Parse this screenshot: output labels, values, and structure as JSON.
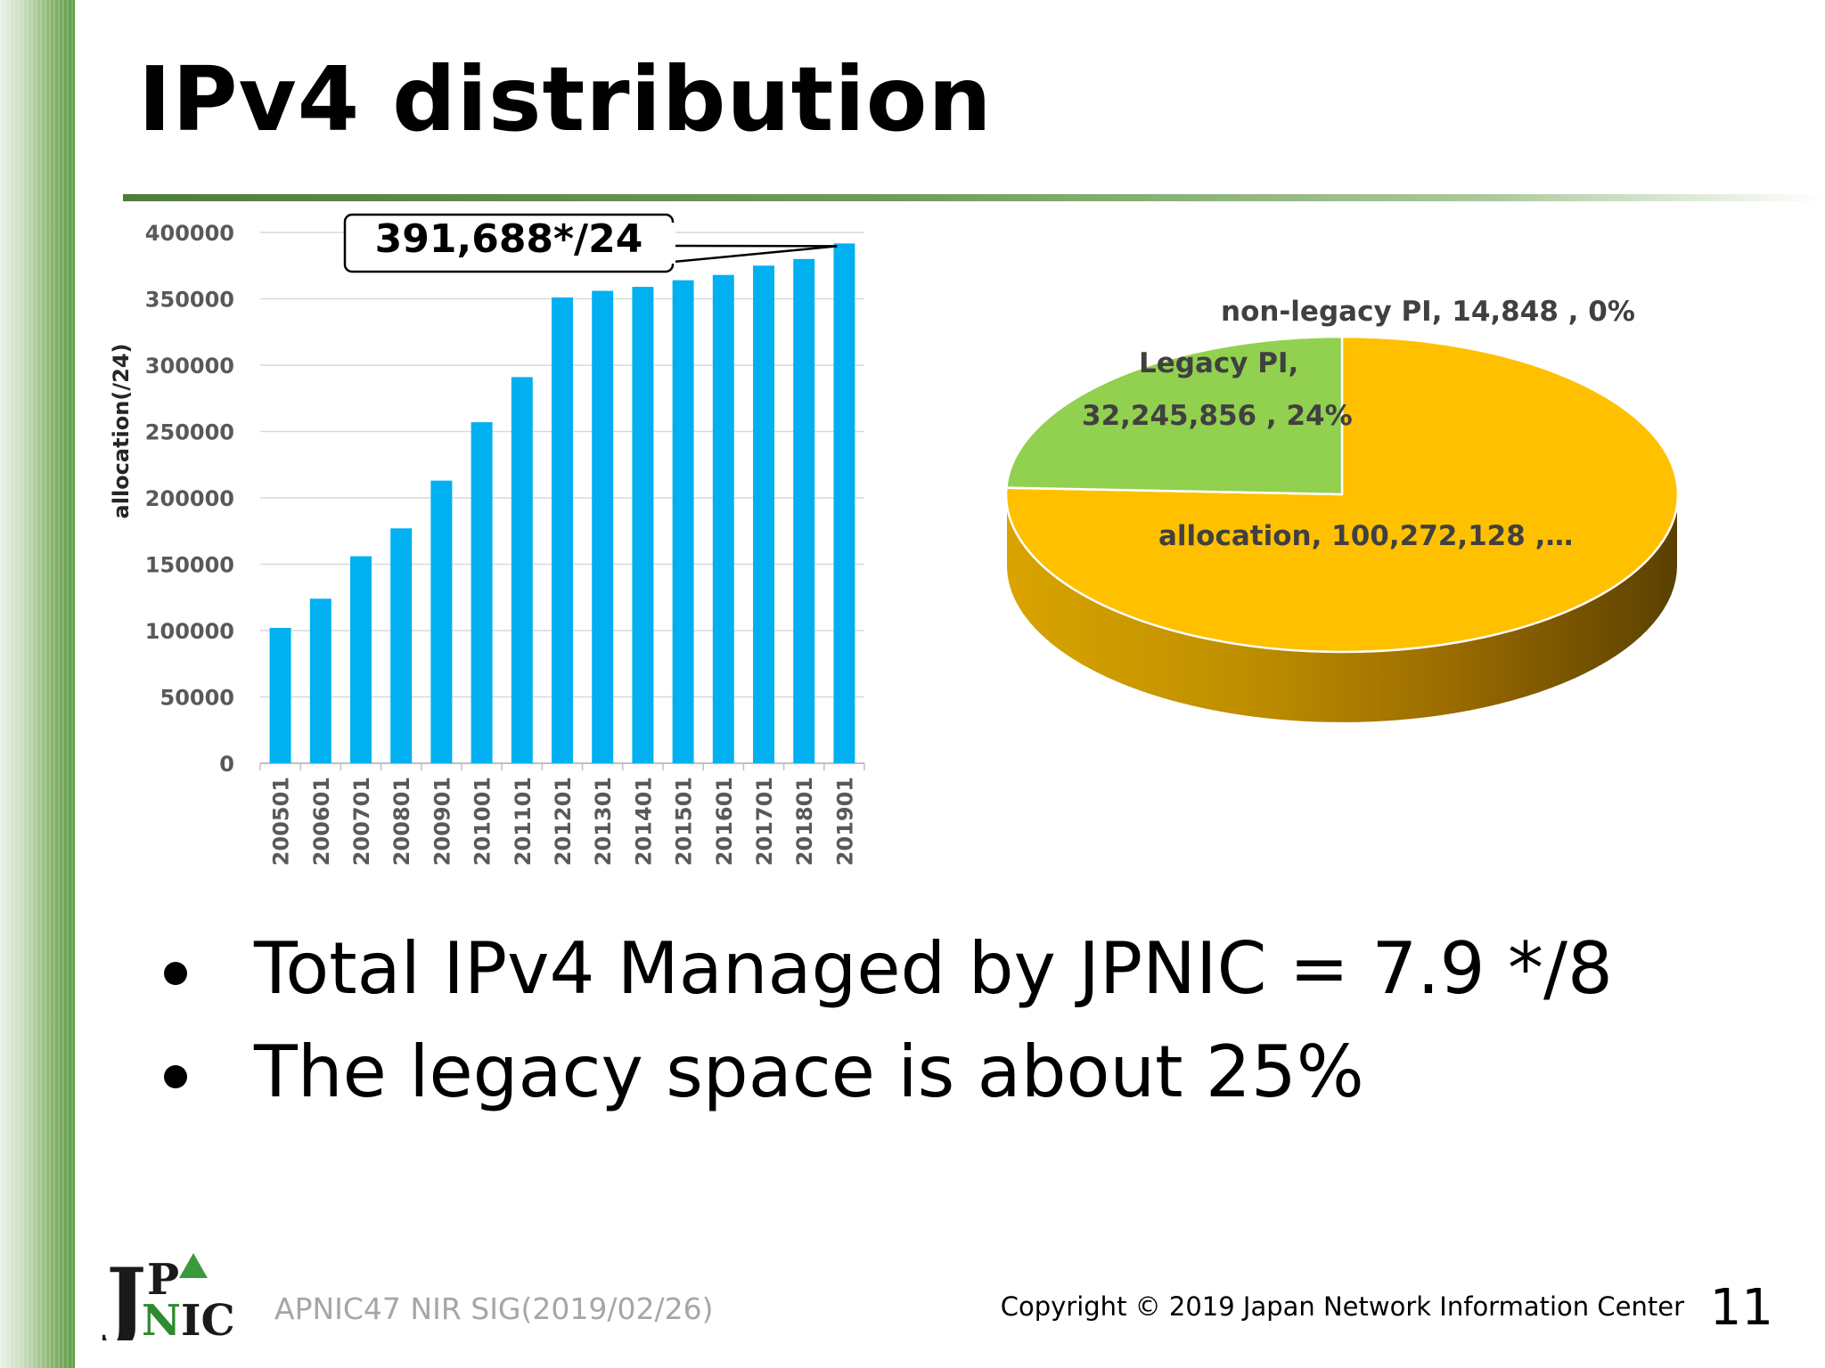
{
  "slide": {
    "title": "IPv4 distribution",
    "bullets": [
      "Total IPv4 Managed by JPNIC = 7.9 */8",
      "The legacy space is about 25%"
    ],
    "footer": {
      "event": "APNIC47 NIR SIG(2019/02/26)",
      "copyright": "Copyright © 2019 Japan Network Information Center",
      "page_number": "11"
    },
    "logo_text": "JPNIC"
  },
  "chart_data": [
    {
      "type": "bar",
      "ylabel": "allocation(/24)",
      "ylim": [
        0,
        400000
      ],
      "yticks": [
        "0",
        "50000",
        "100000",
        "150000",
        "200000",
        "250000",
        "300000",
        "350000",
        "400000"
      ],
      "categories": [
        "200501",
        "200601",
        "200701",
        "200801",
        "200901",
        "201001",
        "201101",
        "201201",
        "201301",
        "201401",
        "201501",
        "201601",
        "201701",
        "201801",
        "201901"
      ],
      "values": [
        102000,
        124000,
        156000,
        177000,
        213000,
        257000,
        291000,
        351000,
        356000,
        359000,
        364000,
        368000,
        375000,
        380000,
        391688
      ],
      "color": "#00b0f0",
      "grid": true,
      "annotation": {
        "text": "391,688*/24",
        "target_category": "201901"
      }
    },
    {
      "type": "pie",
      "style": "3d",
      "slices": [
        {
          "label": "allocation, 100,272,128 ,…",
          "value": 100272128,
          "color": "#ffc000"
        },
        {
          "label": "non-legacy PI, 14,848 , 0%",
          "value": 14848,
          "color": "#92d050"
        },
        {
          "label_line1": "Legacy PI,",
          "label_line2": "32,245,856 , 24%",
          "value": 32245856,
          "color": "#92d050"
        }
      ]
    }
  ]
}
